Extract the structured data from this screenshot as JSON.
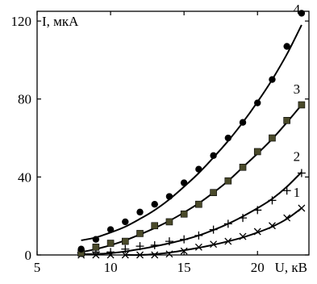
{
  "chart_data": {
    "type": "scatter",
    "title": "",
    "xlabel": "U, кВ",
    "ylabel": "I, мкА",
    "xlim": [
      5,
      23.5
    ],
    "ylim": [
      0,
      125
    ],
    "x_ticks": [
      5,
      10,
      15,
      20
    ],
    "y_ticks": [
      0,
      40,
      80,
      120
    ],
    "grid": false,
    "legend": "none",
    "series": [
      {
        "label": "1",
        "marker": "cross",
        "color": "#000000",
        "x": [
          8,
          9,
          10,
          11,
          12,
          13,
          14,
          15,
          16,
          17,
          18,
          19,
          20,
          21,
          22,
          23
        ],
        "y": [
          0,
          0,
          0,
          0,
          0,
          0,
          0.5,
          2,
          4,
          5.5,
          7,
          9.5,
          12,
          15,
          19,
          24
        ],
        "fit": [
          [
            11,
            0
          ],
          [
            12,
            0
          ],
          [
            13,
            0.4
          ],
          [
            14,
            1.2
          ],
          [
            15,
            2.4
          ],
          [
            16,
            3.7
          ],
          [
            17,
            5.2
          ],
          [
            18,
            7
          ],
          [
            19,
            9
          ],
          [
            20,
            11.5
          ],
          [
            21,
            14.5
          ],
          [
            22,
            18.5
          ],
          [
            23,
            24
          ]
        ]
      },
      {
        "label": "2",
        "marker": "plus",
        "color": "#000000",
        "x": [
          8,
          9,
          10,
          11,
          12,
          13,
          14,
          15,
          16,
          17,
          18,
          19,
          20,
          21,
          22,
          23
        ],
        "y": [
          1,
          1.5,
          1.5,
          3,
          4.5,
          5,
          7,
          8,
          10,
          13,
          16,
          19,
          23,
          28,
          33,
          42
        ],
        "fit": [
          [
            8,
            0.3
          ],
          [
            9,
            0.5
          ],
          [
            10,
            0.9
          ],
          [
            11,
            1.8
          ],
          [
            12,
            3
          ],
          [
            13,
            4.4
          ],
          [
            14,
            6
          ],
          [
            15,
            7.8
          ],
          [
            16,
            10
          ],
          [
            17,
            12.8
          ],
          [
            18,
            16
          ],
          [
            19,
            19.8
          ],
          [
            20,
            24
          ],
          [
            21,
            28.8
          ],
          [
            22,
            35
          ],
          [
            23,
            42.5
          ]
        ]
      },
      {
        "label": "3",
        "marker": "square",
        "color": "#4a4a2a",
        "x": [
          8,
          9,
          10,
          11,
          12,
          13,
          14,
          15,
          16,
          17,
          18,
          19,
          20,
          21,
          22,
          23
        ],
        "y": [
          1,
          4,
          6,
          7,
          11,
          15,
          17,
          21,
          26,
          32,
          38,
          45,
          53,
          60,
          69,
          77
        ],
        "fit": [
          [
            8,
            1.5
          ],
          [
            9,
            3
          ],
          [
            10,
            5
          ],
          [
            11,
            7.5
          ],
          [
            12,
            10.5
          ],
          [
            13,
            13.8
          ],
          [
            14,
            17.5
          ],
          [
            15,
            21.8
          ],
          [
            16,
            26.5
          ],
          [
            17,
            32
          ],
          [
            18,
            38
          ],
          [
            19,
            45
          ],
          [
            20,
            52
          ],
          [
            21,
            59.5
          ],
          [
            22,
            68
          ],
          [
            23,
            77
          ]
        ]
      },
      {
        "label": "4",
        "marker": "circle",
        "color": "#000000",
        "x": [
          8,
          9,
          10,
          11,
          12,
          13,
          14,
          15,
          16,
          17,
          18,
          19,
          20,
          21,
          22,
          23
        ],
        "y": [
          3,
          8,
          13,
          17,
          22,
          26,
          30,
          37,
          44,
          51,
          60,
          68,
          78,
          90,
          107,
          124
        ],
        "fit": [
          [
            8,
            7.5
          ],
          [
            9,
            9
          ],
          [
            10,
            11.5
          ],
          [
            11,
            14.5
          ],
          [
            12,
            18.5
          ],
          [
            13,
            23
          ],
          [
            14,
            28.5
          ],
          [
            15,
            35
          ],
          [
            16,
            42
          ],
          [
            17,
            50
          ],
          [
            18,
            58.5
          ],
          [
            19,
            68
          ],
          [
            20,
            78.5
          ],
          [
            21,
            90
          ],
          [
            22,
            103
          ],
          [
            23,
            118
          ]
        ]
      }
    ]
  }
}
